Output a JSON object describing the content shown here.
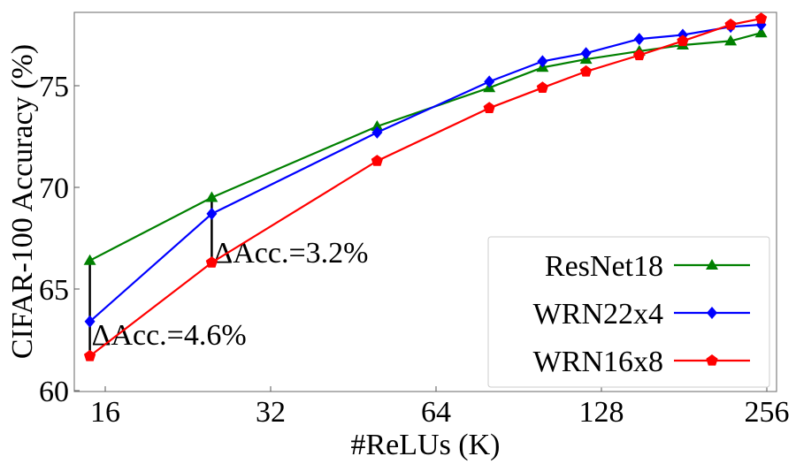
{
  "chart_data": {
    "type": "line",
    "xlabel": "#ReLUs (K)",
    "ylabel": "CIFAR-100 Accuracy (%)",
    "xscale": "log2",
    "xticks": [
      16,
      32,
      64,
      128,
      256
    ],
    "xtick_labels": [
      "16",
      "32",
      "64",
      "128",
      "256"
    ],
    "yticks": [
      60,
      65,
      70,
      75
    ],
    "ytick_labels": [
      "60",
      "65",
      "70",
      "75"
    ],
    "ylim": [
      60,
      78.65
    ],
    "x": [
      15,
      25,
      50,
      80,
      100,
      120,
      150,
      180,
      220,
      250
    ],
    "grid": false,
    "legend_position": "bottom-right",
    "series": [
      {
        "name": "ResNet18",
        "color": "#008000",
        "marker": "triangle",
        "values": [
          66.4,
          69.5,
          73.0,
          74.9,
          75.9,
          76.3,
          76.7,
          77.0,
          77.2,
          77.6
        ]
      },
      {
        "name": "WRN22x4",
        "color": "#0000ff",
        "marker": "diamond",
        "values": [
          63.4,
          68.7,
          72.7,
          75.2,
          76.2,
          76.6,
          77.3,
          77.5,
          77.9,
          78.0
        ]
      },
      {
        "name": "WRN16x8",
        "color": "#ff0000",
        "marker": "pentagon",
        "values": [
          61.7,
          66.3,
          71.3,
          73.9,
          74.9,
          75.7,
          76.5,
          77.2,
          78.0,
          78.3
        ]
      }
    ],
    "annotations": [
      {
        "text": "ΔAcc.=4.6%",
        "x": 15,
        "y_from": 61.7,
        "y_to": 66.4
      },
      {
        "text": "ΔAcc.=3.2%",
        "x": 25,
        "y_from": 66.3,
        "y_to": 69.5
      }
    ]
  }
}
